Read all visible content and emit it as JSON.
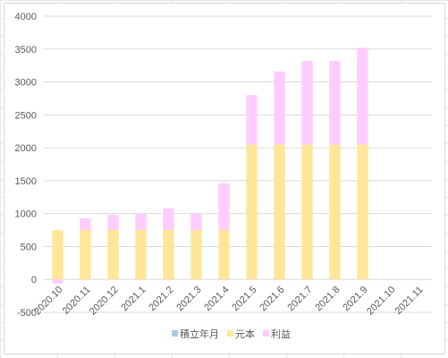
{
  "chart_data": {
    "type": "bar",
    "stacked": true,
    "title": "",
    "xlabel": "",
    "ylabel": "",
    "categories": [
      "2020.10",
      "2020.11",
      "2020.12",
      "2021.1",
      "2021.2",
      "2021.3",
      "2021.4",
      "2021.5",
      "2021.6",
      "2021.7",
      "2021.8",
      "2021.9",
      "2021.10",
      "2021.11"
    ],
    "series": [
      {
        "name": "積立年月",
        "color": "#a9cce3",
        "values": [
          0,
          0,
          0,
          0,
          0,
          0,
          0,
          0,
          0,
          0,
          0,
          0,
          0,
          0
        ]
      },
      {
        "name": "元本",
        "color": "#ffe699",
        "values": [
          750,
          750,
          750,
          750,
          750,
          750,
          750,
          2050,
          2050,
          2050,
          2050,
          2050,
          null,
          null
        ]
      },
      {
        "name": "利益",
        "color": "#ffccff",
        "values": [
          -60,
          180,
          230,
          240,
          330,
          250,
          710,
          750,
          1110,
          1270,
          1270,
          1470,
          null,
          null
        ]
      }
    ],
    "ylim": [
      -500,
      4000
    ],
    "yticks": [
      -500,
      0,
      500,
      1000,
      1500,
      2000,
      2500,
      3000,
      3500,
      4000
    ],
    "grid": true,
    "legend_position": "bottom"
  }
}
